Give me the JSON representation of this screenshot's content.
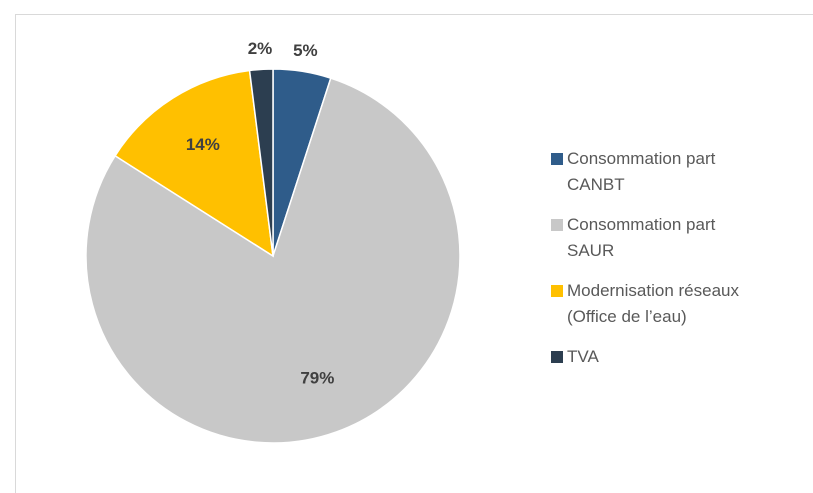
{
  "chart_data": {
    "type": "pie",
    "categories": [
      "Consommation part CANBT",
      "Consommation part SAUR",
      "Modernisation réseaux (Office de l’eau)",
      "TVA"
    ],
    "values": [
      5,
      79,
      14,
      2
    ],
    "value_labels": [
      "5%",
      "79%",
      "14%",
      "2%"
    ],
    "colors": [
      "#2f5c8a",
      "#c8c8c8",
      "#ffc000",
      "#2c3e50"
    ],
    "legend": "right"
  }
}
